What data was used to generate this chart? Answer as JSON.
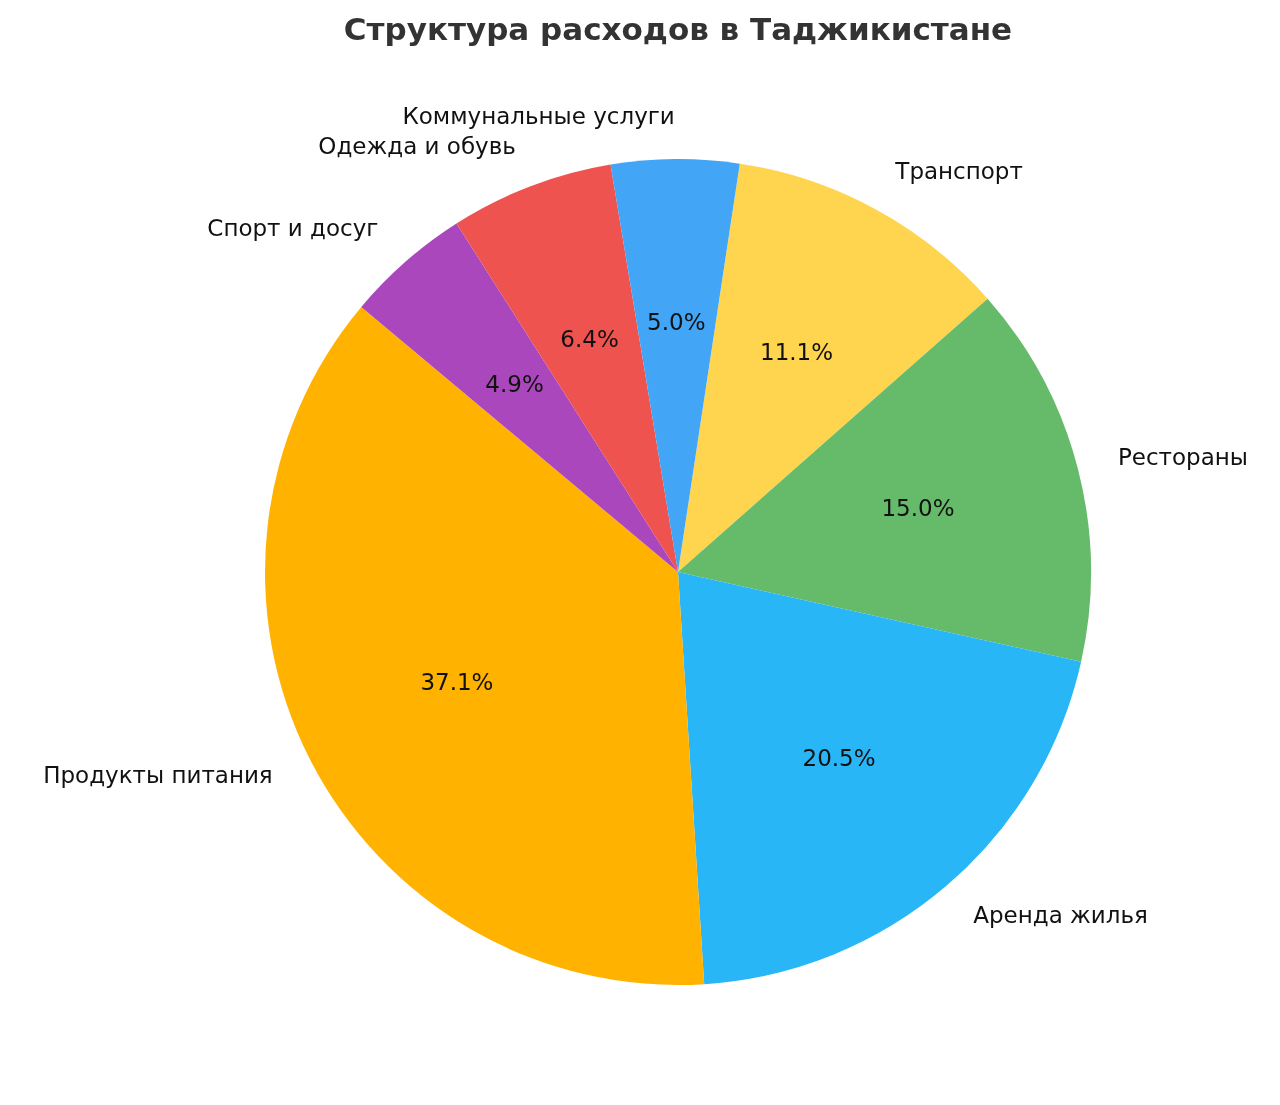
{
  "chart_data": {
    "type": "pie",
    "title": "Структура расходов в Таджикистане",
    "categories": [
      "Транспорт",
      "Рестораны",
      "Аренда жилья",
      "Продукты питания",
      "Спорт и досуг",
      "Одежда и обувь",
      "Коммунальные услуги"
    ],
    "values": [
      11.1,
      15.0,
      20.5,
      37.1,
      4.9,
      6.4,
      5.0
    ],
    "colors": [
      "#ffd54f",
      "#66bb6a",
      "#29b6f6",
      "#ffb300",
      "#ab47bc",
      "#ef5350",
      "#42a5f5"
    ],
    "value_labels": [
      "11.1%",
      "15.0%",
      "20.5%",
      "37.1%",
      "4.9%",
      "6.4%",
      "5.0%"
    ],
    "legend": false
  }
}
